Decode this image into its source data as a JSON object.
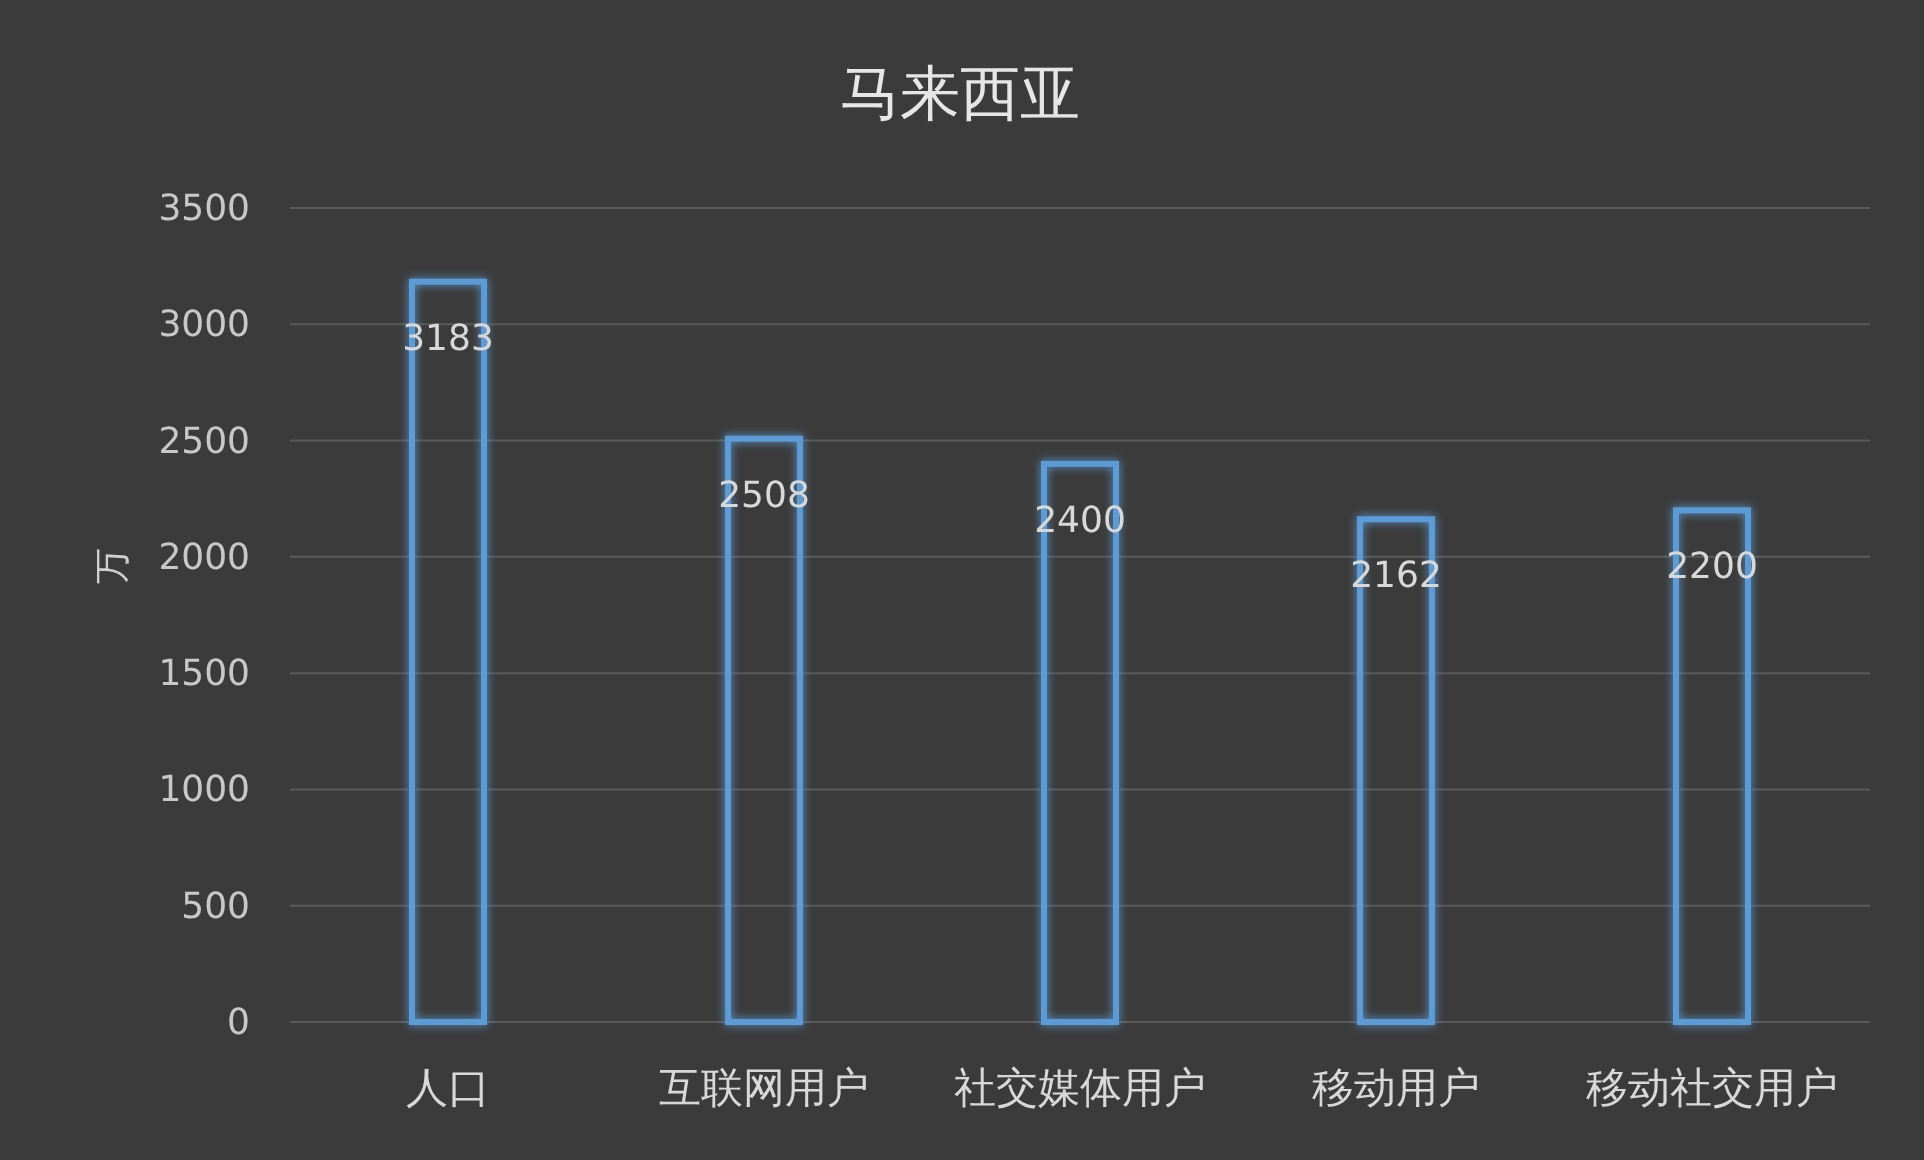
{
  "chart_data": {
    "type": "bar",
    "title": "马来西亚",
    "ylabel": "万",
    "categories": [
      "人口",
      "互联网用户",
      "社交媒体用户",
      "移动用户",
      "移动社交用户"
    ],
    "values": [
      3183,
      2508,
      2400,
      2162,
      2200
    ],
    "color": "#5b9bd5",
    "ylim": [
      0,
      3500
    ],
    "yticks": [
      0,
      500,
      1000,
      1500,
      2000,
      2500,
      3000,
      3500
    ],
    "grid": "y",
    "data_labels": true
  }
}
